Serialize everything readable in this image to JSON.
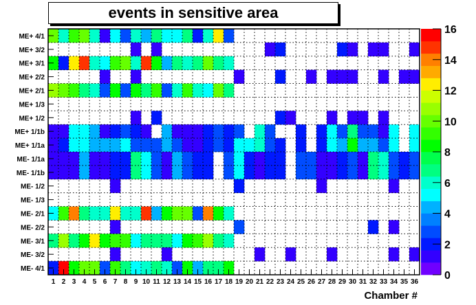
{
  "chart_data": {
    "type": "heatmap",
    "title": "events in sensitive area",
    "xlabel": "Chamber #",
    "ylabel": "",
    "x": [
      1,
      2,
      3,
      4,
      5,
      6,
      7,
      8,
      9,
      10,
      11,
      12,
      13,
      14,
      15,
      16,
      17,
      18,
      19,
      20,
      21,
      22,
      23,
      24,
      25,
      26,
      27,
      28,
      29,
      30,
      31,
      32,
      33,
      34,
      35,
      36
    ],
    "zlim": [
      0,
      16
    ],
    "z_ticks": [
      0,
      2,
      4,
      6,
      8,
      10,
      12,
      14,
      16
    ],
    "grid": true,
    "colorbar": "right",
    "palette": [
      "#7000ff",
      "#3300ff",
      "#0019ff",
      "#004cff",
      "#0080ff",
      "#00b2ff",
      "#00ffff",
      "#00ffcc",
      "#00ff80",
      "#00ff4c",
      "#00ff00",
      "#33ff00",
      "#66ff00",
      "#99ff00",
      "#ccff00",
      "#ffee00",
      "#ffaa00",
      "#ff7f00",
      "#ff3300",
      "#ff0000"
    ],
    "rows": [
      {
        "label": "ME+ 4/1",
        "values": [
          10,
          6,
          9,
          10,
          6,
          1,
          5,
          3,
          6,
          4,
          7,
          5,
          5,
          7,
          2,
          6,
          12,
          3,
          0,
          0,
          0,
          0,
          0,
          0,
          0,
          0,
          0,
          0,
          0,
          0,
          0,
          0,
          0,
          0,
          0,
          0
        ]
      },
      {
        "label": "ME+ 3/2",
        "values": [
          0,
          0,
          0,
          0,
          0,
          0,
          0,
          0,
          1,
          0,
          1,
          0,
          0,
          0,
          0,
          0,
          0,
          0,
          0,
          0,
          0,
          1,
          2,
          0,
          0,
          0,
          0,
          0,
          2,
          1,
          0,
          1,
          1,
          0,
          0,
          1
        ]
      },
      {
        "label": "ME+ 3/1",
        "values": [
          8,
          2,
          12,
          15,
          6,
          5,
          9,
          10,
          6,
          15,
          8,
          4,
          7,
          6,
          7,
          10,
          7,
          6,
          0,
          0,
          0,
          0,
          0,
          0,
          0,
          0,
          0,
          0,
          0,
          0,
          0,
          0,
          0,
          0,
          0,
          0
        ]
      },
      {
        "label": "ME+ 2/2",
        "values": [
          0,
          0,
          0,
          0,
          0,
          1,
          0,
          0,
          1,
          0,
          0,
          0,
          0,
          0,
          0,
          0,
          0,
          0,
          1,
          0,
          0,
          0,
          2,
          0,
          0,
          1,
          0,
          1,
          1,
          1,
          0,
          0,
          1,
          0,
          1,
          1
        ]
      },
      {
        "label": "ME+ 2/1",
        "values": [
          11,
          10,
          9,
          7,
          6,
          3,
          8,
          3,
          8,
          7,
          9,
          3,
          6,
          9,
          6,
          5,
          10,
          7,
          0,
          0,
          0,
          0,
          0,
          0,
          0,
          0,
          0,
          0,
          0,
          0,
          0,
          0,
          0,
          0,
          0,
          0
        ]
      },
      {
        "label": "ME+ 1/3",
        "values": [
          0,
          0,
          0,
          0,
          0,
          0,
          0,
          0,
          0,
          0,
          0,
          0,
          0,
          0,
          0,
          0,
          0,
          0,
          0,
          0,
          0,
          0,
          0,
          0,
          0,
          0,
          0,
          0,
          0,
          0,
          0,
          0,
          0,
          0,
          0,
          0
        ]
      },
      {
        "label": "ME+ 1/2",
        "values": [
          0,
          0,
          0,
          0,
          0,
          0,
          0,
          0,
          1,
          0,
          2,
          0,
          0,
          0,
          0,
          0,
          0,
          0,
          0,
          0,
          0,
          0,
          2,
          1,
          0,
          0,
          0,
          1,
          0,
          1,
          1,
          0,
          1,
          0,
          0,
          0
        ]
      },
      {
        "label": "ME+ 1/1b",
        "values": [
          1,
          1,
          5,
          5,
          4,
          1,
          2,
          3,
          2,
          1,
          0,
          4,
          1,
          1,
          1,
          2,
          3,
          2,
          3,
          0,
          6,
          3,
          0,
          0,
          2,
          0,
          2,
          5,
          3,
          7,
          3,
          3,
          1,
          5,
          0,
          5
        ]
      },
      {
        "label": "ME+ 1/1a",
        "values": [
          1,
          2,
          5,
          5,
          4,
          4,
          4,
          5,
          3,
          3,
          3,
          4,
          3,
          1,
          1,
          2,
          3,
          2,
          5,
          5,
          6,
          3,
          2,
          0,
          2,
          0,
          2,
          5,
          4,
          8,
          4,
          4,
          3,
          5,
          0,
          5
        ]
      },
      {
        "label": "ME- 1/1a",
        "values": [
          1,
          1,
          1,
          4,
          1,
          1,
          2,
          2,
          7,
          5,
          3,
          1,
          4,
          3,
          2,
          2,
          0,
          3,
          5,
          2,
          1,
          2,
          2,
          0,
          3,
          3,
          1,
          1,
          2,
          3,
          1,
          7,
          6,
          3,
          2,
          3
        ]
      },
      {
        "label": "ME- 1/1b",
        "values": [
          1,
          1,
          1,
          4,
          1,
          1,
          2,
          2,
          7,
          5,
          3,
          1,
          4,
          3,
          2,
          2,
          0,
          3,
          5,
          2,
          1,
          2,
          2,
          0,
          3,
          3,
          1,
          1,
          2,
          3,
          1,
          7,
          6,
          3,
          2,
          3
        ]
      },
      {
        "label": "ME- 1/2",
        "values": [
          0,
          0,
          0,
          0,
          0,
          0,
          1,
          0,
          0,
          0,
          0,
          0,
          0,
          0,
          0,
          0,
          0,
          0,
          2,
          0,
          0,
          0,
          0,
          0,
          0,
          0,
          1,
          0,
          0,
          0,
          0,
          0,
          0,
          1,
          0,
          0
        ]
      },
      {
        "label": "ME- 1/3",
        "values": [
          0,
          0,
          0,
          0,
          0,
          0,
          0,
          0,
          0,
          0,
          0,
          0,
          0,
          0,
          0,
          0,
          0,
          0,
          0,
          0,
          0,
          0,
          0,
          0,
          0,
          0,
          0,
          0,
          0,
          0,
          0,
          0,
          0,
          0,
          0,
          0
        ]
      },
      {
        "label": "ME- 2/1",
        "values": [
          5,
          9,
          14,
          7,
          6,
          6,
          12,
          6,
          6,
          15,
          4,
          8,
          10,
          10,
          3,
          14,
          8,
          6,
          0,
          0,
          0,
          0,
          0,
          0,
          0,
          0,
          0,
          0,
          0,
          0,
          0,
          0,
          0,
          0,
          0,
          0
        ]
      },
      {
        "label": "ME- 2/2",
        "values": [
          0,
          0,
          0,
          0,
          0,
          0,
          1,
          0,
          0,
          0,
          0,
          0,
          0,
          0,
          0,
          0,
          0,
          0,
          3,
          0,
          0,
          0,
          0,
          0,
          0,
          0,
          0,
          0,
          0,
          0,
          0,
          2,
          0,
          1,
          0,
          0
        ]
      },
      {
        "label": "ME- 3/1",
        "values": [
          7,
          11,
          7,
          8,
          12,
          8,
          9,
          9,
          5,
          7,
          7,
          7,
          5,
          8,
          9,
          11,
          7,
          6,
          0,
          0,
          0,
          0,
          0,
          0,
          0,
          0,
          0,
          0,
          0,
          0,
          0,
          0,
          0,
          0,
          0,
          0
        ]
      },
      {
        "label": "ME- 3/2",
        "values": [
          0,
          0,
          0,
          0,
          0,
          0,
          1,
          0,
          0,
          0,
          0,
          1,
          0,
          0,
          0,
          0,
          0,
          0,
          0,
          0,
          1,
          0,
          0,
          1,
          0,
          0,
          0,
          1,
          0,
          0,
          0,
          0,
          0,
          1,
          0,
          1
        ]
      },
      {
        "label": "ME- 4/1",
        "values": [
          2,
          16,
          8,
          10,
          10,
          3,
          9,
          7,
          5,
          6,
          7,
          6,
          3,
          8,
          4,
          7,
          7,
          8,
          0,
          0,
          0,
          0,
          0,
          0,
          0,
          0,
          0,
          0,
          0,
          0,
          0,
          0,
          0,
          0,
          0,
          0
        ]
      }
    ]
  }
}
